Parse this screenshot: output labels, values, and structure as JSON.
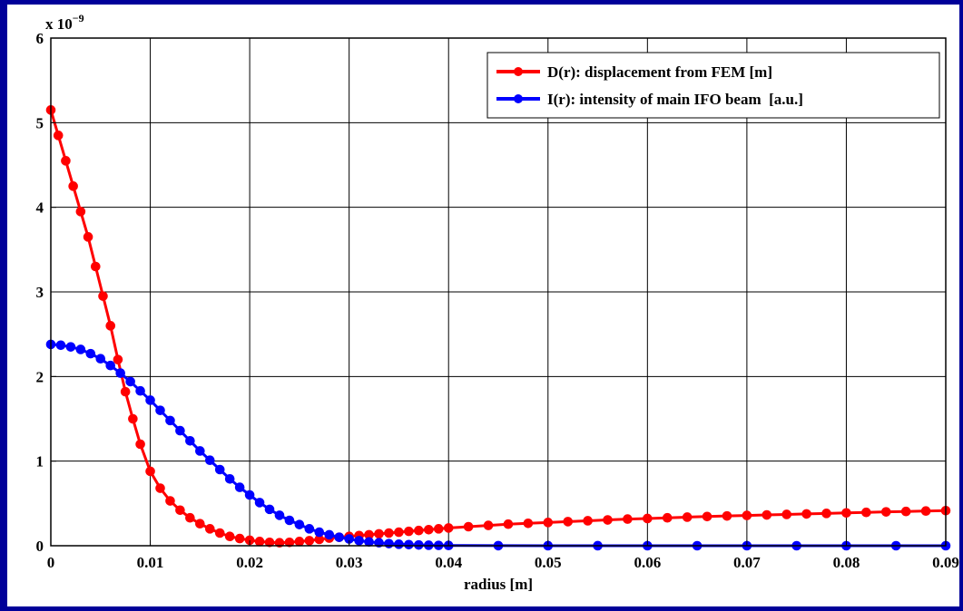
{
  "chart_data": {
    "type": "line",
    "xlabel": "radius [m]",
    "ylabel": "",
    "y_exponent_label": {
      "base": "x 10",
      "exponent": "−9"
    },
    "xlim": [
      0,
      0.09
    ],
    "ylim": [
      0,
      6
    ],
    "xticks": [
      0,
      0.01,
      0.02,
      0.03,
      0.04,
      0.05,
      0.06,
      0.07,
      0.08,
      0.09
    ],
    "xtick_labels": [
      "0",
      "0.01",
      "0.02",
      "0.03",
      "0.04",
      "0.05",
      "0.06",
      "0.07",
      "0.08",
      "0.09"
    ],
    "yticks": [
      0,
      1,
      2,
      3,
      4,
      5,
      6
    ],
    "ytick_labels": [
      "0",
      "1",
      "2",
      "3",
      "4",
      "5",
      "6"
    ],
    "grid": true,
    "legend_position": "top-right",
    "series": [
      {
        "name": "D(r): displacement from FEM [m]",
        "color": "#ff0000",
        "marker": "circle",
        "x": [
          0,
          0.00075,
          0.0015,
          0.00225,
          0.003,
          0.00375,
          0.0045,
          0.00525,
          0.006,
          0.00675,
          0.0075,
          0.00825,
          0.009,
          0.01,
          0.011,
          0.012,
          0.013,
          0.014,
          0.015,
          0.016,
          0.017,
          0.018,
          0.019,
          0.02,
          0.021,
          0.022,
          0.023,
          0.024,
          0.025,
          0.026,
          0.027,
          0.028,
          0.029,
          0.03,
          0.031,
          0.032,
          0.033,
          0.034,
          0.035,
          0.036,
          0.037,
          0.038,
          0.039,
          0.04,
          0.042,
          0.044,
          0.046,
          0.048,
          0.05,
          0.052,
          0.054,
          0.056,
          0.058,
          0.06,
          0.062,
          0.064,
          0.066,
          0.068,
          0.07,
          0.072,
          0.074,
          0.076,
          0.078,
          0.08,
          0.082,
          0.084,
          0.086,
          0.088,
          0.09
        ],
        "y": [
          5.15,
          4.85,
          4.55,
          4.25,
          3.95,
          3.65,
          3.3,
          2.95,
          2.6,
          2.2,
          1.82,
          1.5,
          1.2,
          0.88,
          0.68,
          0.53,
          0.42,
          0.33,
          0.26,
          0.2,
          0.15,
          0.11,
          0.085,
          0.065,
          0.05,
          0.04,
          0.035,
          0.04,
          0.05,
          0.06,
          0.075,
          0.09,
          0.1,
          0.11,
          0.12,
          0.13,
          0.14,
          0.15,
          0.16,
          0.17,
          0.18,
          0.19,
          0.2,
          0.21,
          0.225,
          0.24,
          0.255,
          0.265,
          0.275,
          0.285,
          0.295,
          0.305,
          0.315,
          0.322,
          0.33,
          0.338,
          0.345,
          0.352,
          0.358,
          0.364,
          0.37,
          0.376,
          0.382,
          0.388,
          0.394,
          0.4,
          0.405,
          0.41,
          0.415
        ]
      },
      {
        "name": "I(r): intensity of main IFO beam  [a.u.]",
        "color": "#0000ff",
        "marker": "circle",
        "x": [
          0,
          0.001,
          0.002,
          0.003,
          0.004,
          0.005,
          0.006,
          0.007,
          0.008,
          0.009,
          0.01,
          0.011,
          0.012,
          0.013,
          0.014,
          0.015,
          0.016,
          0.017,
          0.018,
          0.019,
          0.02,
          0.021,
          0.022,
          0.023,
          0.024,
          0.025,
          0.026,
          0.027,
          0.028,
          0.029,
          0.03,
          0.031,
          0.032,
          0.033,
          0.034,
          0.035,
          0.036,
          0.037,
          0.038,
          0.039,
          0.04,
          0.045,
          0.05,
          0.055,
          0.06,
          0.065,
          0.07,
          0.075,
          0.08,
          0.085,
          0.09
        ],
        "y": [
          2.38,
          2.37,
          2.35,
          2.32,
          2.27,
          2.21,
          2.13,
          2.04,
          1.94,
          1.83,
          1.72,
          1.6,
          1.48,
          1.36,
          1.24,
          1.12,
          1.01,
          0.9,
          0.79,
          0.69,
          0.6,
          0.51,
          0.43,
          0.36,
          0.3,
          0.25,
          0.2,
          0.16,
          0.13,
          0.1,
          0.08,
          0.06,
          0.045,
          0.035,
          0.025,
          0.018,
          0.013,
          0.009,
          0.006,
          0.004,
          0.003,
          0.001,
          0.0005,
          0.0002,
          0.0001,
          0,
          0,
          0,
          0,
          0,
          0
        ]
      }
    ]
  }
}
